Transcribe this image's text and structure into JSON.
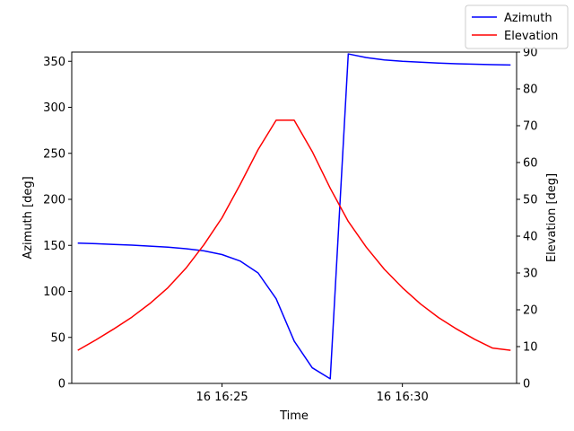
{
  "chart_data": {
    "type": "line",
    "xlabel": "Time",
    "ylabel_left": "Azimuth [deg]",
    "ylabel_right": "Elevation [deg]",
    "xlim": [
      "16 16:20:50",
      "16 16:33:10"
    ],
    "ylim_left": [
      0,
      360
    ],
    "ylim_right": [
      0,
      90
    ],
    "grid": false,
    "legend_position": "top-right",
    "x_ticks": [
      {
        "value": "16 16:25:00",
        "label": "16 16:25"
      },
      {
        "value": "16 16:30:00",
        "label": "16 16:30"
      }
    ],
    "y_ticks_left": [
      "0",
      "50",
      "100",
      "150",
      "200",
      "250",
      "300",
      "350"
    ],
    "y_ticks_right": [
      "0",
      "10",
      "20",
      "30",
      "40",
      "50",
      "60",
      "70",
      "80",
      "90"
    ],
    "x": [
      "16 16:21:00",
      "16 16:21:30",
      "16 16:22:00",
      "16 16:22:30",
      "16 16:23:00",
      "16 16:23:30",
      "16 16:24:00",
      "16 16:24:30",
      "16 16:25:00",
      "16 16:25:30",
      "16 16:26:00",
      "16 16:26:30",
      "16 16:27:00",
      "16 16:27:30",
      "16 16:28:00",
      "16 16:28:30",
      "16 16:29:00",
      "16 16:29:30",
      "16 16:30:00",
      "16 16:30:30",
      "16 16:31:00",
      "16 16:31:30",
      "16 16:32:00",
      "16 16:32:30",
      "16 16:33:00"
    ],
    "series": [
      {
        "name": "Azimuth",
        "axis": "left",
        "color": "#0000ff",
        "values": [
          152.5,
          151.8,
          151.0,
          150.2,
          149.2,
          148.0,
          146.3,
          144.0,
          140.0,
          133.0,
          120.0,
          92.0,
          46.0,
          17.0,
          5.0,
          358.0,
          354.0,
          351.5,
          350.0,
          349.0,
          348.0,
          347.3,
          346.8,
          346.4,
          346.0
        ]
      },
      {
        "name": "Elevation",
        "axis": "right",
        "color": "#ff0000",
        "values": [
          9.0,
          11.8,
          14.8,
          18.0,
          21.7,
          26.0,
          31.3,
          37.7,
          45.0,
          54.0,
          63.5,
          71.5,
          71.5,
          63.0,
          53.0,
          44.0,
          37.0,
          31.0,
          26.0,
          21.6,
          17.9,
          14.8,
          12.0,
          9.6,
          9.0
        ]
      }
    ]
  }
}
